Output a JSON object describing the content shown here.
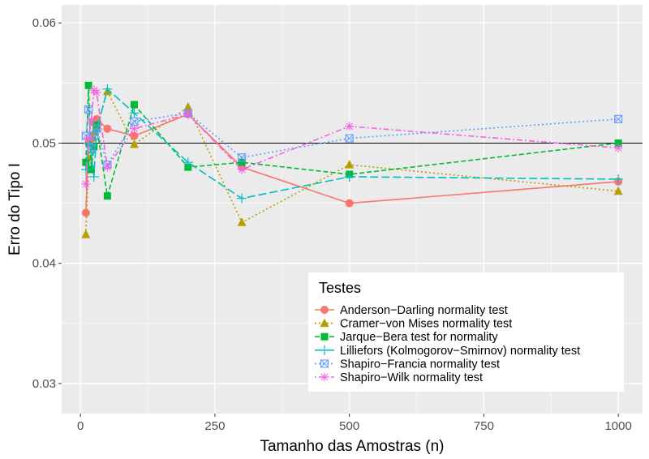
{
  "chart_data": {
    "type": "line",
    "xlabel": "Tamanho das Amostras (n)",
    "ylabel": "Erro do Tipo I",
    "xlim": [
      -35,
      1045
    ],
    "ylim": [
      0.0275,
      0.0615
    ],
    "x_ticks": [
      0,
      250,
      500,
      750,
      1000
    ],
    "x_tick_labels": [
      "0",
      "250",
      "500",
      "750",
      "1000"
    ],
    "y_ticks": [
      0.03,
      0.04,
      0.05,
      0.06
    ],
    "y_tick_labels": [
      "0.03",
      "0.04",
      "0.05",
      "0.06"
    ],
    "reference_line": 0.05,
    "grid": true,
    "panel_background": "#ebebeb",
    "legend": {
      "title": "Testes",
      "placement": "bottom-right"
    },
    "x": [
      10,
      15,
      20,
      25,
      30,
      50,
      100,
      200,
      300,
      500,
      1000
    ],
    "series": [
      {
        "name": "Anderson−Darling normality test",
        "color": "#F8766D",
        "marker": "circle",
        "dash": "solid",
        "values": [
          0.0442,
          0.05,
          0.0503,
          0.0517,
          0.052,
          0.0512,
          0.0506,
          0.0524,
          0.048,
          0.045,
          0.0468
        ]
      },
      {
        "name": "Cramer−von Mises normality test",
        "color": "#B79F00",
        "marker": "triangle",
        "dash": "dotted",
        "values": [
          0.0424,
          0.0488,
          0.05,
          0.0509,
          0.0513,
          0.0543,
          0.0499,
          0.053,
          0.0434,
          0.0482,
          0.046
        ]
      },
      {
        "name": "Jarque−Bera test for normality",
        "color": "#00BA38",
        "marker": "square",
        "dash": "dashed",
        "values": [
          0.0484,
          0.0548,
          0.0478,
          0.0497,
          0.0515,
          0.0456,
          0.0532,
          0.048,
          0.0484,
          0.0474,
          0.05
        ]
      },
      {
        "name": "Lilliefors (Kolmogorov−Smirnov) normality test",
        "color": "#00BFC4",
        "marker": "plus",
        "dash": "longdash",
        "values": [
          0.0478,
          0.05,
          0.0492,
          0.0472,
          0.051,
          0.0545,
          0.0525,
          0.0484,
          0.0454,
          0.0472,
          0.047
        ]
      },
      {
        "name": "Shapiro−Francia normality test",
        "color": "#619CFF",
        "marker": "square-x",
        "dash": "dotted",
        "values": [
          0.0506,
          0.0528,
          0.0496,
          0.0506,
          0.0512,
          0.0482,
          0.0518,
          0.0525,
          0.0488,
          0.0504,
          0.052
        ]
      },
      {
        "name": "Shapiro−Wilk normality test",
        "color": "#F564E3",
        "marker": "asterisk",
        "dash": "dotdash",
        "values": [
          0.0466,
          0.0504,
          0.0519,
          0.0544,
          0.0542,
          0.048,
          0.0512,
          0.0524,
          0.0478,
          0.0514,
          0.0496
        ]
      }
    ]
  }
}
